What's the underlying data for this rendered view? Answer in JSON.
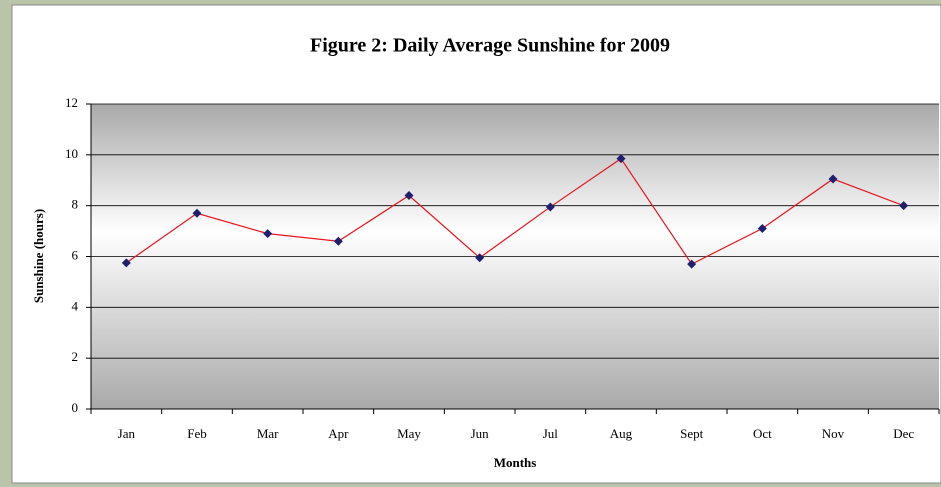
{
  "chart_data": {
    "type": "line",
    "title": "Figure 2:  Daily Average Sunshine for 2009",
    "x_label": "Months",
    "y_label": "Sunshine (hours)",
    "categories": [
      "Jan",
      "Feb",
      "Mar",
      "Apr",
      "May",
      "Jun",
      "Jul",
      "Aug",
      "Sept",
      "Oct",
      "Nov",
      "Dec"
    ],
    "series": [
      {
        "name": "Sunshine",
        "color": "#e8141e",
        "marker_color": "#1f1f6e",
        "values": [
          5.75,
          7.7,
          6.9,
          6.6,
          8.4,
          5.95,
          7.95,
          9.85,
          5.7,
          7.1,
          9.05,
          8.0
        ]
      }
    ],
    "ylim": [
      0,
      12
    ],
    "yticks": [
      0,
      2,
      4,
      6,
      8,
      10,
      12
    ],
    "grid": true
  }
}
